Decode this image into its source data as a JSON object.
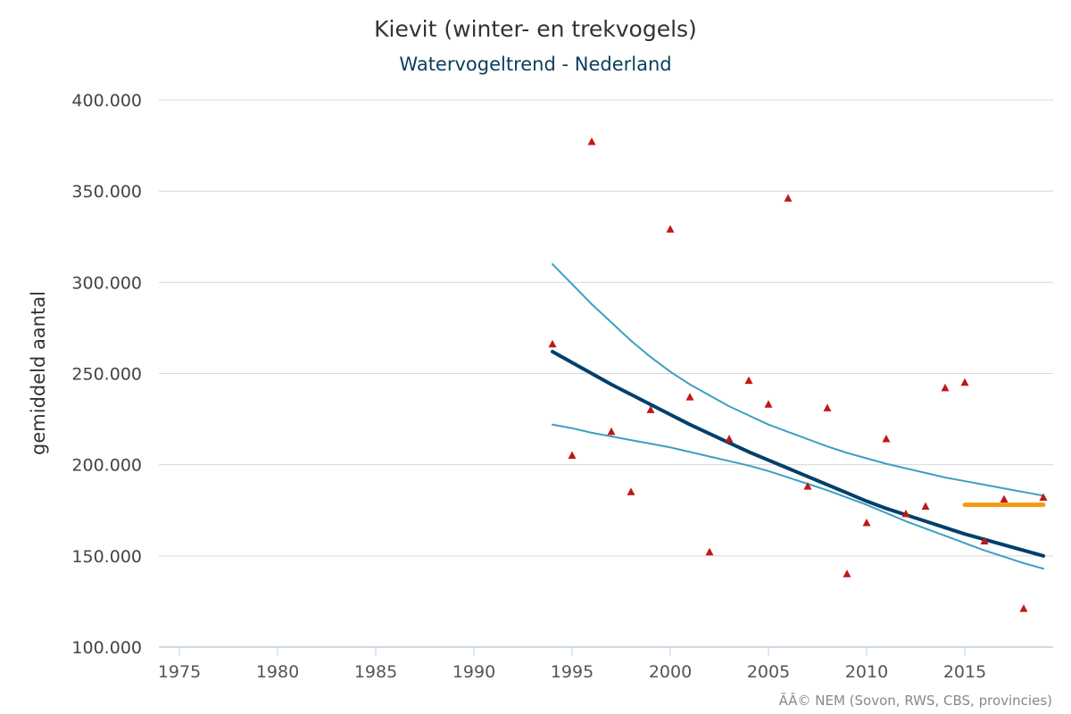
{
  "chart_data": {
    "type": "line",
    "title": "Kievit (winter- en trekvogels)",
    "subtitle": "Watervogeltrend - Nederland",
    "ylabel": "gemiddeld aantal",
    "xlabel": "",
    "credits": "ÃÂ© NEM (Sovon, RWS, CBS, provincies)",
    "xlim": [
      1974,
      2020
    ],
    "ylim": [
      100000,
      400000
    ],
    "x_ticks": [
      1975,
      1980,
      1985,
      1990,
      1995,
      2000,
      2005,
      2010,
      2015
    ],
    "y_ticks": [
      100000,
      150000,
      200000,
      250000,
      300000,
      350000,
      400000
    ],
    "y_tick_labels": [
      "100.000",
      "150.000",
      "200.000",
      "250.000",
      "300.000",
      "350.000",
      "400.000"
    ],
    "x_tick_labels": [
      "1975",
      "1980",
      "1985",
      "1990",
      "1995",
      "2000",
      "2005",
      "2010",
      "2015"
    ],
    "grid": "horizontal",
    "colors": {
      "observed": "#c01818",
      "trend": "#003f6b",
      "ci": "#3d9fc2",
      "recent": "#f59a16",
      "grid": "#d8d8d8",
      "axis": "#c0cfe0"
    },
    "observed": {
      "x": [
        1994,
        1995,
        1996,
        1997,
        1998,
        1999,
        2000,
        2001,
        2002,
        2003,
        2004,
        2005,
        2006,
        2007,
        2008,
        2009,
        2010,
        2011,
        2012,
        2013,
        2014,
        2015,
        2016,
        2017,
        2018,
        2019
      ],
      "y": [
        266000,
        205000,
        377000,
        218000,
        185000,
        230000,
        329000,
        237000,
        152000,
        214000,
        246000,
        233000,
        346000,
        188000,
        231000,
        140000,
        168000,
        214000,
        173000,
        177000,
        242000,
        245000,
        158000,
        181000,
        121000,
        182000
      ]
    },
    "trend": {
      "x": [
        1994,
        1995,
        1996,
        1997,
        1998,
        1999,
        2000,
        2001,
        2002,
        2003,
        2004,
        2005,
        2006,
        2007,
        2008,
        2009,
        2010,
        2011,
        2012,
        2013,
        2014,
        2015,
        2016,
        2017,
        2018,
        2019
      ],
      "y": [
        262000,
        256000,
        250000,
        244000,
        238500,
        233000,
        227500,
        222000,
        217000,
        212000,
        207000,
        202500,
        198000,
        193500,
        189000,
        184500,
        180000,
        176000,
        172500,
        169000,
        165500,
        162000,
        159000,
        156000,
        153000,
        150000
      ]
    },
    "ci_upper": {
      "x": [
        1994,
        1995,
        1996,
        1997,
        1998,
        1999,
        2000,
        2001,
        2002,
        2003,
        2004,
        2005,
        2006,
        2007,
        2008,
        2009,
        2010,
        2011,
        2012,
        2013,
        2014,
        2015,
        2016,
        2017,
        2018,
        2019
      ],
      "y": [
        310000,
        299000,
        288000,
        278000,
        268000,
        259000,
        251000,
        244000,
        238000,
        232000,
        227000,
        222000,
        218000,
        214000,
        210000,
        206500,
        203500,
        200500,
        198000,
        195500,
        193000,
        191000,
        189000,
        187000,
        185000,
        183000
      ]
    },
    "ci_lower": {
      "x": [
        1994,
        1995,
        1996,
        1997,
        1998,
        1999,
        2000,
        2001,
        2002,
        2003,
        2004,
        2005,
        2006,
        2007,
        2008,
        2009,
        2010,
        2011,
        2012,
        2013,
        2014,
        2015,
        2016,
        2017,
        2018,
        2019
      ],
      "y": [
        222000,
        220000,
        217500,
        215500,
        213500,
        211500,
        209500,
        207000,
        204500,
        202000,
        199500,
        196500,
        193000,
        189500,
        186000,
        182000,
        178000,
        173500,
        169000,
        165000,
        161000,
        157000,
        153000,
        149500,
        146000,
        143000
      ]
    },
    "recent": {
      "x": [
        2015,
        2019
      ],
      "y": [
        178000,
        178000
      ]
    }
  }
}
